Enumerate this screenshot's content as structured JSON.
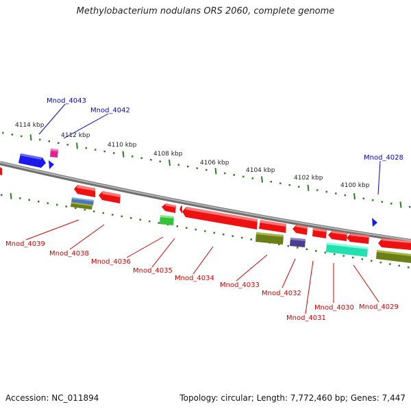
{
  "title": "Methylobacterium nodulans ORS 2060, complete genome",
  "footer": {
    "accession": "Accession: NC_011894",
    "stats": "Topology: circular; Length: 7,772,460 bp; Genes: 7,447"
  },
  "tick_labels": [
    "4114 kbp",
    "4112 kbp",
    "4110 kbp",
    "4108 kbp",
    "4106 kbp",
    "4104 kbp",
    "4102 kbp",
    "4100 kbp"
  ],
  "gene_labels": [
    "Mnod_4043",
    "Mnod_4042",
    "Mnod_4028",
    "Mnod_4039",
    "Mnod_4038",
    "Mnod_4036",
    "Mnod_4035",
    "Mnod_4034",
    "Mnod_4033",
    "Mnod_4032",
    "Mnod_4031",
    "Mnod_4030",
    "Mnod_4029"
  ],
  "colors": {
    "backbone": "#8a8a8a",
    "ticks": "#2e7d20",
    "forward_label": "#0000cc",
    "reverse_label": "#cc0000",
    "gene_red": "#ee1111",
    "gene_blue": "#1a1aee",
    "gene_magenta": "#e0248e",
    "gene_green": "#34c23a",
    "gene_olive": "#6b7f16",
    "gene_steelblue": "#4a78b8",
    "gene_slate": "#4a3f8f",
    "gene_teal": "#22e0b0"
  }
}
